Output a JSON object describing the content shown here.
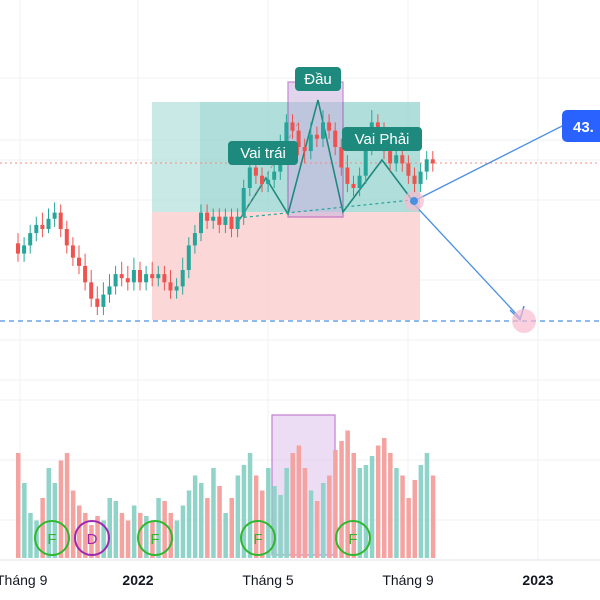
{
  "chart_data": {
    "type": "candlestick",
    "x_ticks": [
      "Tháng 9",
      "2022",
      "Tháng 5",
      "Tháng 9",
      "2023"
    ],
    "price_tag": "43.",
    "pattern_labels": {
      "left_shoulder": "Vai trái",
      "head": "Đầu",
      "right_shoulder": "Vai Phải"
    },
    "event_markers": [
      "F",
      "D",
      "F",
      "F",
      "F"
    ],
    "candles": [
      [
        0,
        263,
        258,
        268,
        254
      ],
      [
        1,
        258,
        262,
        266,
        254
      ],
      [
        2,
        262,
        268,
        272,
        258
      ],
      [
        3,
        268,
        272,
        276,
        264
      ],
      [
        4,
        272,
        270,
        278,
        266
      ],
      [
        5,
        270,
        275,
        280,
        268
      ],
      [
        6,
        275,
        278,
        283,
        271
      ],
      [
        7,
        278,
        270,
        282,
        266
      ],
      [
        8,
        270,
        262,
        274,
        258
      ],
      [
        9,
        262,
        256,
        266,
        252
      ],
      [
        10,
        256,
        252,
        262,
        248
      ],
      [
        11,
        252,
        244,
        258,
        240
      ],
      [
        12,
        244,
        236,
        250,
        232
      ],
      [
        13,
        236,
        232,
        242,
        228
      ],
      [
        14,
        232,
        238,
        244,
        228
      ],
      [
        15,
        238,
        242,
        248,
        234
      ],
      [
        16,
        242,
        248,
        252,
        238
      ],
      [
        17,
        248,
        246,
        254,
        242
      ],
      [
        18,
        246,
        244,
        252,
        240
      ],
      [
        19,
        244,
        250,
        256,
        240
      ],
      [
        20,
        250,
        244,
        254,
        240
      ],
      [
        21,
        244,
        248,
        252,
        240
      ],
      [
        22,
        248,
        246,
        254,
        242
      ],
      [
        23,
        246,
        248,
        252,
        242
      ],
      [
        24,
        248,
        244,
        252,
        240
      ],
      [
        25,
        244,
        240,
        250,
        236
      ],
      [
        26,
        240,
        242,
        246,
        236
      ],
      [
        27,
        242,
        250,
        256,
        238
      ],
      [
        28,
        250,
        262,
        266,
        246
      ],
      [
        29,
        262,
        268,
        272,
        258
      ],
      [
        30,
        268,
        278,
        282,
        264
      ],
      [
        31,
        278,
        274,
        282,
        270
      ],
      [
        32,
        274,
        276,
        280,
        270
      ],
      [
        33,
        276,
        272,
        280,
        268
      ],
      [
        34,
        272,
        276,
        280,
        268
      ],
      [
        35,
        276,
        270,
        280,
        266
      ],
      [
        36,
        270,
        276,
        280,
        266
      ],
      [
        37,
        276,
        290,
        294,
        272
      ],
      [
        38,
        290,
        300,
        306,
        286
      ],
      [
        39,
        300,
        296,
        306,
        292
      ],
      [
        40,
        296,
        292,
        300,
        288
      ],
      [
        41,
        292,
        294,
        298,
        288
      ],
      [
        42,
        294,
        298,
        304,
        290
      ],
      [
        43,
        298,
        310,
        316,
        294
      ],
      [
        44,
        310,
        322,
        326,
        306
      ],
      [
        45,
        322,
        318,
        326,
        314
      ],
      [
        46,
        318,
        310,
        322,
        306
      ],
      [
        47,
        310,
        308,
        314,
        302
      ],
      [
        48,
        308,
        316,
        322,
        304
      ],
      [
        49,
        316,
        314,
        320,
        310
      ],
      [
        50,
        314,
        322,
        328,
        310
      ],
      [
        51,
        322,
        318,
        326,
        314
      ],
      [
        52,
        318,
        310,
        322,
        306
      ],
      [
        53,
        310,
        300,
        314,
        296
      ],
      [
        54,
        300,
        292,
        306,
        288
      ],
      [
        55,
        292,
        290,
        296,
        286
      ],
      [
        56,
        290,
        296,
        300,
        286
      ],
      [
        57,
        296,
        310,
        314,
        292
      ],
      [
        58,
        310,
        322,
        328,
        306
      ],
      [
        59,
        322,
        318,
        326,
        314
      ],
      [
        60,
        318,
        308,
        322,
        304
      ],
      [
        61,
        308,
        302,
        312,
        298
      ],
      [
        62,
        302,
        306,
        310,
        298
      ],
      [
        63,
        306,
        302,
        310,
        298
      ],
      [
        64,
        302,
        296,
        306,
        292
      ],
      [
        65,
        296,
        292,
        300,
        288
      ],
      [
        66,
        292,
        298,
        302,
        288
      ],
      [
        67,
        298,
        304,
        308,
        294
      ],
      [
        68,
        304,
        302,
        308,
        298
      ]
    ]
  }
}
